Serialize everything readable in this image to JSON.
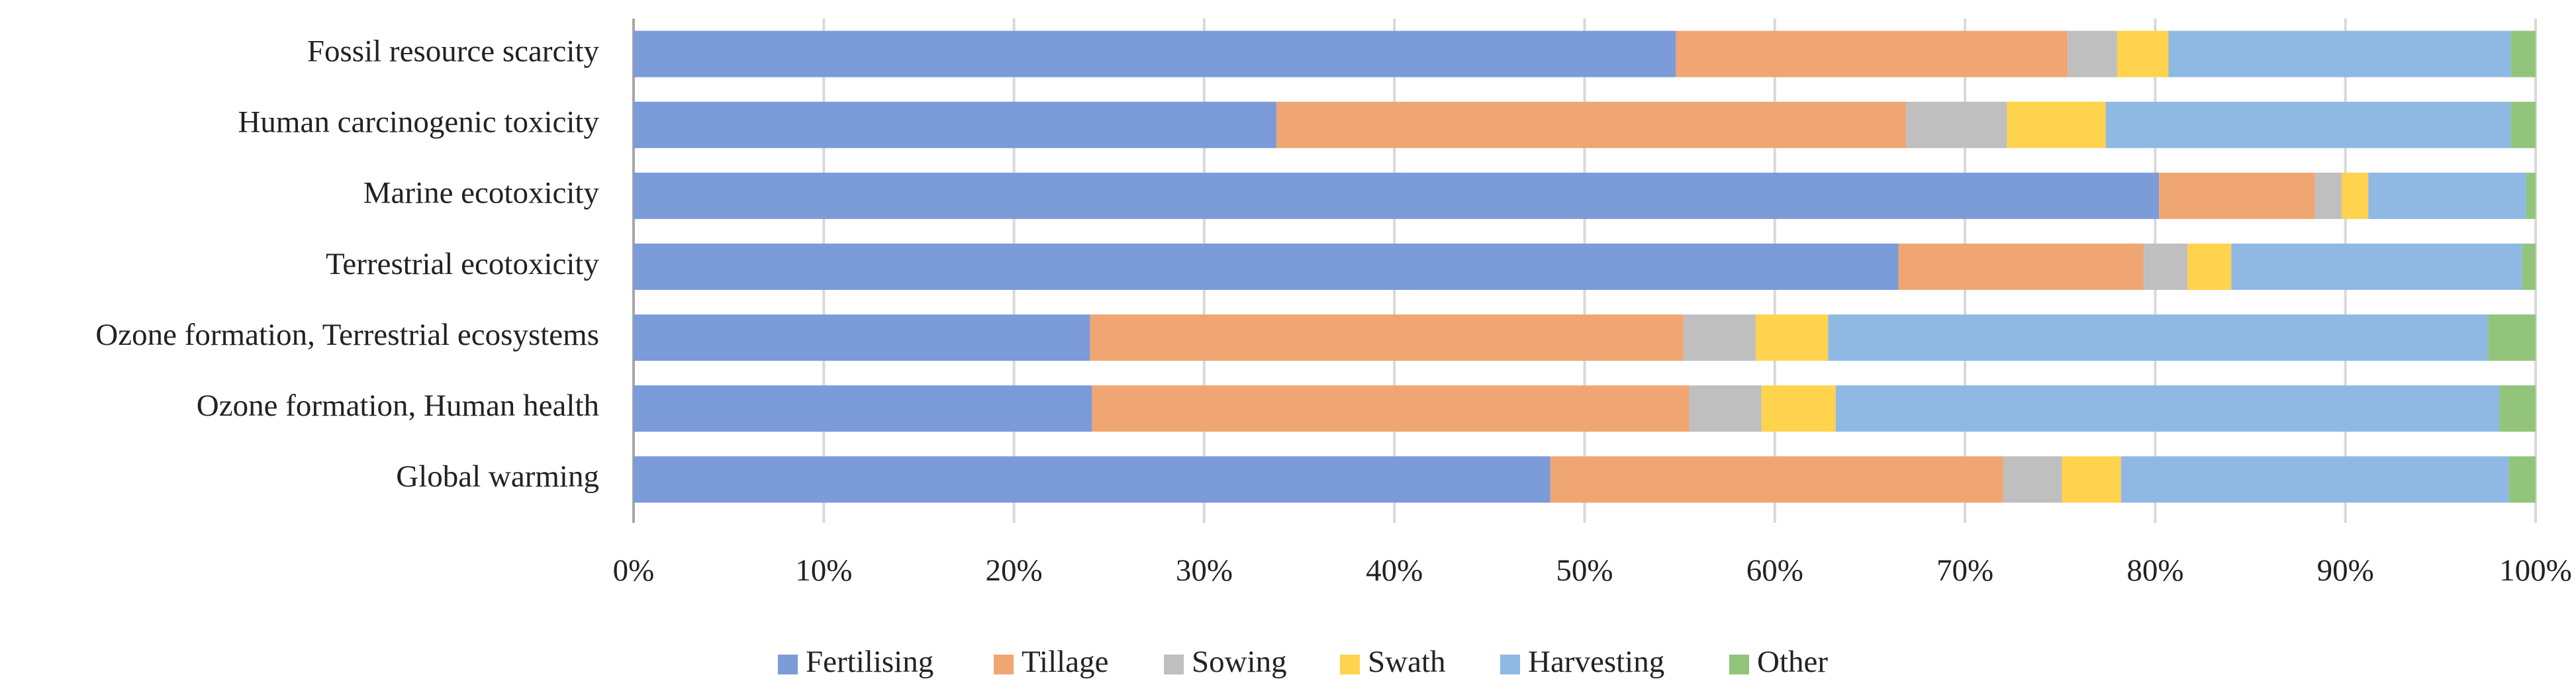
{
  "chart_data": {
    "type": "stacked-bar-horizontal",
    "categories": [
      "Fossil resource scarcity",
      "Human carcinogenic toxicity",
      "Marine ecotoxicity",
      "Terrestrial ecotoxicity",
      "Ozone formation, Terrestrial ecosystems",
      "Ozone formation, Human health",
      "Global warming"
    ],
    "series": [
      {
        "name": "Fertilising",
        "color": "#7b9bd9",
        "values": [
          54.8,
          33.8,
          80.2,
          66.5,
          24.0,
          24.1,
          48.2
        ]
      },
      {
        "name": "Tillage",
        "color": "#f0a672",
        "values": [
          20.6,
          33.1,
          8.2,
          12.9,
          31.2,
          31.4,
          23.8
        ]
      },
      {
        "name": "Sowing",
        "color": "#bfbfbf",
        "values": [
          2.6,
          5.3,
          1.4,
          2.3,
          3.8,
          3.8,
          3.1
        ]
      },
      {
        "name": "Swath",
        "color": "#ffd34d",
        "values": [
          2.7,
          5.2,
          1.4,
          2.3,
          3.8,
          3.9,
          3.1
        ]
      },
      {
        "name": "Harvesting",
        "color": "#8fb9e2",
        "values": [
          18.0,
          21.3,
          8.3,
          15.3,
          34.7,
          34.9,
          20.4
        ]
      },
      {
        "name": "Other",
        "color": "#92c47c",
        "values": [
          1.3,
          1.3,
          0.5,
          0.7,
          2.5,
          1.9,
          1.4
        ]
      }
    ],
    "xlim": [
      0,
      100
    ],
    "xticks": [
      {
        "value": 0,
        "label": "0%"
      },
      {
        "value": 10,
        "label": "10%"
      },
      {
        "value": 20,
        "label": "20%"
      },
      {
        "value": 30,
        "label": "30%"
      },
      {
        "value": 40,
        "label": "40%"
      },
      {
        "value": 50,
        "label": "50%"
      },
      {
        "value": 60,
        "label": "60%"
      },
      {
        "value": 70,
        "label": "70%"
      },
      {
        "value": 80,
        "label": "80%"
      },
      {
        "value": 90,
        "label": "90%"
      },
      {
        "value": 100,
        "label": "100%"
      }
    ],
    "grid": true,
    "legend": "bottom"
  }
}
